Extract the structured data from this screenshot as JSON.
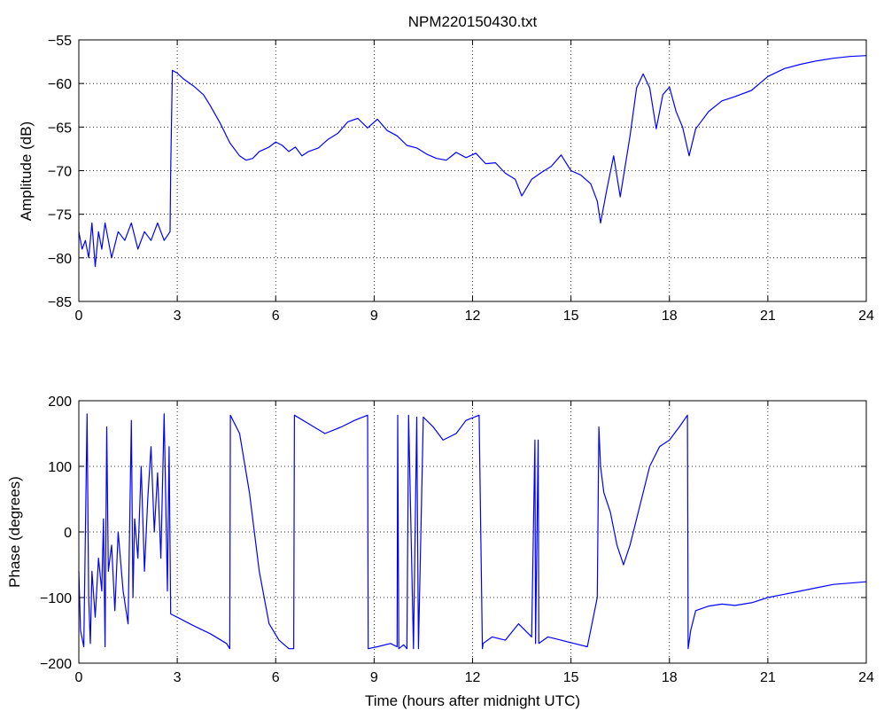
{
  "chart_data": [
    {
      "type": "line",
      "title": "NPM220150430.txt",
      "xlabel": "",
      "ylabel": "Amplitude (dB)",
      "xlim": [
        0,
        24
      ],
      "ylim": [
        -85,
        -55
      ],
      "grid": true,
      "xticks": [
        0,
        3,
        6,
        9,
        12,
        15,
        18,
        21,
        24
      ],
      "yticks": [
        -85,
        -80,
        -75,
        -70,
        -65,
        -60,
        -55
      ],
      "color": "#0000ff",
      "series": [
        {
          "name": "",
          "x": [
            0.0,
            0.1,
            0.2,
            0.3,
            0.4,
            0.5,
            0.6,
            0.7,
            0.8,
            0.9,
            1.0,
            1.2,
            1.4,
            1.6,
            1.8,
            2.0,
            2.2,
            2.4,
            2.6,
            2.78,
            2.8,
            2.85,
            3.0,
            3.2,
            3.5,
            3.8,
            4.0,
            4.3,
            4.6,
            4.9,
            5.1,
            5.3,
            5.5,
            5.8,
            6.0,
            6.2,
            6.4,
            6.6,
            6.8,
            7.0,
            7.3,
            7.6,
            7.9,
            8.2,
            8.5,
            8.8,
            9.1,
            9.4,
            9.7,
            10.0,
            10.3,
            10.6,
            10.9,
            11.2,
            11.5,
            11.8,
            12.1,
            12.4,
            12.7,
            13.0,
            13.3,
            13.5,
            13.8,
            14.1,
            14.4,
            14.7,
            15.0,
            15.3,
            15.6,
            15.8,
            15.9,
            16.1,
            16.3,
            16.5,
            16.8,
            17.0,
            17.2,
            17.4,
            17.6,
            17.8,
            18.0,
            18.2,
            18.4,
            18.6,
            18.8,
            19.2,
            19.6,
            20.0,
            20.5,
            21.0,
            21.5,
            22.0,
            22.5,
            23.0,
            23.5,
            24.0
          ],
          "values": [
            -77,
            -79,
            -78,
            -80,
            -76,
            -81,
            -77,
            -79,
            -76,
            -78,
            -80,
            -77,
            -78,
            -76,
            -79,
            -77,
            -78,
            -76,
            -78,
            -77,
            -70,
            -58.5,
            -58.8,
            -59.5,
            -60.3,
            -61.3,
            -62.5,
            -64.5,
            -66.8,
            -68.3,
            -68.8,
            -68.6,
            -67.8,
            -67.3,
            -66.7,
            -67.1,
            -67.8,
            -67.3,
            -68.3,
            -67.8,
            -67.4,
            -66.4,
            -65.7,
            -64.4,
            -64.0,
            -65.1,
            -64.1,
            -65.4,
            -66.0,
            -67.1,
            -67.4,
            -68.1,
            -68.6,
            -68.8,
            -67.9,
            -68.5,
            -68.0,
            -69.2,
            -69.1,
            -70.3,
            -71.0,
            -72.9,
            -71.0,
            -70.2,
            -69.5,
            -68.2,
            -70.0,
            -70.5,
            -71.5,
            -73.5,
            -76.0,
            -72.0,
            -68.3,
            -73.0,
            -66.0,
            -60.5,
            -58.9,
            -60.5,
            -65.2,
            -61.3,
            -60.4,
            -63.2,
            -65.0,
            -68.3,
            -65.2,
            -63.2,
            -62.0,
            -61.5,
            -60.8,
            -59.2,
            -58.3,
            -57.8,
            -57.4,
            -57.1,
            -56.9,
            -56.8
          ]
        }
      ]
    },
    {
      "type": "line",
      "title": "",
      "xlabel": "Time (hours after midnight UTC)",
      "ylabel": "Phase (degrees)",
      "xlim": [
        0,
        24
      ],
      "ylim": [
        -200,
        200
      ],
      "grid": true,
      "xticks": [
        0,
        3,
        6,
        9,
        12,
        15,
        18,
        21,
        24
      ],
      "yticks": [
        -200,
        -100,
        0,
        100,
        200
      ],
      "color": "#0000ff",
      "series": [
        {
          "name": "",
          "x": [
            0.0,
            0.05,
            0.15,
            0.25,
            0.3,
            0.35,
            0.4,
            0.5,
            0.6,
            0.7,
            0.75,
            0.8,
            0.85,
            0.9,
            1.0,
            1.1,
            1.2,
            1.35,
            1.5,
            1.6,
            1.65,
            1.7,
            1.8,
            1.9,
            2.0,
            2.1,
            2.2,
            2.3,
            2.4,
            2.5,
            2.6,
            2.7,
            2.75,
            2.8,
            3.0,
            3.5,
            4.0,
            4.5,
            4.6,
            4.62,
            4.9,
            5.2,
            5.5,
            5.8,
            6.1,
            6.4,
            6.55,
            6.57,
            7.0,
            7.5,
            8.0,
            8.4,
            8.8,
            8.82,
            9.1,
            9.5,
            9.7,
            9.72,
            9.75,
            9.9,
            10.0,
            10.05,
            10.2,
            10.3,
            10.35,
            10.5,
            10.8,
            11.1,
            11.5,
            11.8,
            12.2,
            12.3,
            12.32,
            12.6,
            13.0,
            13.4,
            13.8,
            13.9,
            13.92,
            14.0,
            14.02,
            14.3,
            14.7,
            15.1,
            15.5,
            15.8,
            15.85,
            15.9,
            16.0,
            16.2,
            16.4,
            16.6,
            16.8,
            17.1,
            17.4,
            17.7,
            18.0,
            18.3,
            18.55,
            18.57,
            18.65,
            18.8,
            19.2,
            19.6,
            20.0,
            20.5,
            21.0,
            21.5,
            22.0,
            22.5,
            23.0,
            23.5,
            24.0
          ],
          "values": [
            -60,
            -150,
            -175,
            180,
            -100,
            -170,
            -60,
            -130,
            -40,
            -90,
            20,
            -175,
            160,
            -60,
            -20,
            -120,
            0,
            -90,
            -140,
            170,
            -100,
            20,
            -40,
            100,
            -60,
            50,
            130,
            0,
            90,
            -40,
            180,
            -90,
            130,
            -125,
            -130,
            -143,
            -155,
            -170,
            -178,
            178,
            150,
            60,
            -60,
            -140,
            -165,
            -178,
            -178,
            178,
            165,
            150,
            160,
            170,
            178,
            -178,
            -175,
            -170,
            -175,
            178,
            -178,
            -172,
            -178,
            178,
            -178,
            175,
            -178,
            175,
            160,
            140,
            150,
            170,
            178,
            -178,
            -170,
            -160,
            -165,
            -140,
            -160,
            140,
            -170,
            140,
            -170,
            -160,
            -165,
            -170,
            -175,
            -100,
            160,
            100,
            60,
            30,
            -20,
            -50,
            -20,
            40,
            100,
            130,
            140,
            160,
            178,
            -178,
            -150,
            -120,
            -113,
            -110,
            -112,
            -108,
            -100,
            -95,
            -90,
            -85,
            -80,
            -78,
            -76
          ]
        }
      ]
    }
  ]
}
